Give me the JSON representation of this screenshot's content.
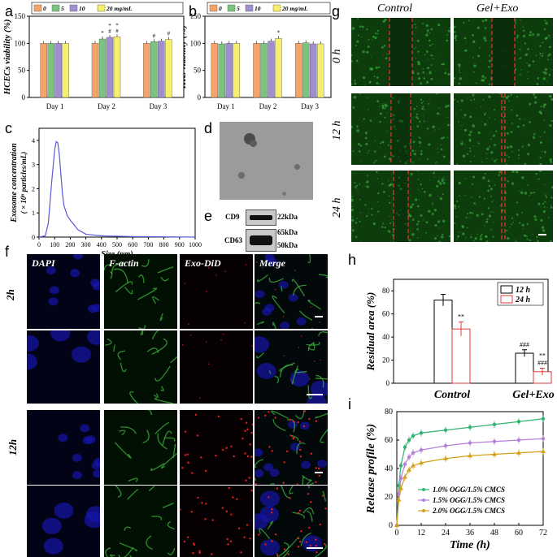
{
  "panels": {
    "a": "a",
    "b": "b",
    "c": "c",
    "d": "d",
    "e": "e",
    "f": "f",
    "g": "g",
    "h": "h",
    "i": "i"
  },
  "a": {
    "ylabel": "HCECs viability (%)",
    "categories": [
      "Day 1",
      "Day 2",
      "Day 3"
    ],
    "legend": [
      "0",
      "5",
      "10",
      "20 mg/mL"
    ],
    "colors": [
      "#f4a46a",
      "#7bc47f",
      "#9f8fcf",
      "#f5ef6b"
    ],
    "values": [
      [
        100,
        100,
        100,
        100
      ],
      [
        100,
        108,
        111,
        112
      ],
      [
        100,
        103,
        104,
        107
      ]
    ],
    "sig": [
      [
        "",
        "",
        "",
        ""
      ],
      [
        "",
        "*",
        "# *",
        "# *"
      ],
      [
        "",
        "#",
        "",
        "#"
      ]
    ],
    "ylim": [
      0,
      150
    ],
    "yticks": [
      "0",
      "50",
      "100",
      "150"
    ]
  },
  "b": {
    "ylabel": "HKs viability (%)",
    "categories": [
      "Day 1",
      "Day 2",
      "Day 3"
    ],
    "legend": [
      "0",
      "5",
      "10",
      "20 mg/mL"
    ],
    "values": [
      [
        100,
        99,
        100,
        100
      ],
      [
        100,
        100,
        104,
        109
      ],
      [
        100,
        101,
        99,
        99
      ]
    ],
    "sig": [
      [
        "",
        "",
        "",
        ""
      ],
      [
        "",
        "",
        "",
        "*"
      ],
      [
        "",
        "",
        "",
        ""
      ]
    ],
    "ylim": [
      0,
      150
    ],
    "yticks": [
      "0",
      "50",
      "100",
      "150"
    ]
  },
  "c": {
    "ylabel1": "Exosome concentration",
    "ylabel2": "( × 10⁶ particles/mL)",
    "xlabel": "Size (nm)",
    "xticks": [
      "0",
      "100",
      "200",
      "300",
      "400",
      "500",
      "600",
      "700",
      "800",
      "900",
      "1000"
    ],
    "yticks": [
      "0",
      "1",
      "2",
      "3",
      "4"
    ]
  },
  "e": {
    "cd9": "CD9",
    "cd63": "CD63",
    "kda22": "22kDa",
    "kda65": "65kDa",
    "kda50": "50kDa"
  },
  "f": {
    "cols": [
      "DAPI",
      "F-actin",
      "Exo-DiD",
      "Merge"
    ],
    "rows": [
      "2h",
      "12h"
    ]
  },
  "g": {
    "cols": [
      "Control",
      "Gel+Exo"
    ],
    "rows": [
      "0 h",
      "12 h",
      "24 h"
    ]
  },
  "h": {
    "ylabel": "Residual area (%)",
    "categories": [
      "Control",
      "Gel+Exo"
    ],
    "legend": [
      "12 h",
      "24 h"
    ],
    "values": [
      [
        72,
        47
      ],
      [
        26,
        10
      ]
    ],
    "errors": [
      [
        5,
        6
      ],
      [
        3,
        3
      ]
    ],
    "sig": [
      [
        "",
        "**"
      ],
      [
        "###",
        "### **"
      ]
    ],
    "yticks": [
      "0",
      "20",
      "40",
      "60",
      "80"
    ]
  },
  "i": {
    "ylabel": "Release profile (%)",
    "xlabel": "Time (h)",
    "xticks": [
      "0",
      "12",
      "24",
      "36",
      "48",
      "60",
      "72"
    ],
    "yticks": [
      "0",
      "20",
      "40",
      "60",
      "80"
    ],
    "legend": [
      "1.0% OGG/1.5% CMCS",
      "1.5% OGG/1.5% CMCS",
      "2.0% OGG/1.5% CMCS"
    ]
  },
  "chart_data": [
    {
      "type": "bar",
      "panel": "a",
      "categories": [
        "Day 1",
        "Day 2",
        "Day 3"
      ],
      "series": [
        {
          "name": "0",
          "values": [
            100,
            100,
            100
          ]
        },
        {
          "name": "5",
          "values": [
            100,
            108,
            103
          ]
        },
        {
          "name": "10",
          "values": [
            100,
            111,
            104
          ]
        },
        {
          "name": "20 mg/mL",
          "values": [
            100,
            112,
            107
          ]
        }
      ],
      "ylabel": "HCECs viability (%)",
      "ylim": [
        0,
        150
      ]
    },
    {
      "type": "bar",
      "panel": "b",
      "categories": [
        "Day 1",
        "Day 2",
        "Day 3"
      ],
      "series": [
        {
          "name": "0",
          "values": [
            100,
            100,
            100
          ]
        },
        {
          "name": "5",
          "values": [
            99,
            100,
            101
          ]
        },
        {
          "name": "10",
          "values": [
            100,
            104,
            99
          ]
        },
        {
          "name": "20 mg/mL",
          "values": [
            100,
            109,
            99
          ]
        }
      ],
      "ylabel": "HKs viability (%)",
      "ylim": [
        0,
        150
      ]
    },
    {
      "type": "line",
      "panel": "c",
      "x": [
        0,
        40,
        60,
        80,
        100,
        110,
        120,
        130,
        140,
        150,
        160,
        180,
        200,
        250,
        300,
        400,
        600,
        800,
        1000
      ],
      "values": [
        0,
        0.05,
        0.6,
        2.2,
        3.6,
        3.95,
        3.9,
        3.4,
        2.6,
        1.8,
        1.3,
        0.9,
        0.7,
        0.3,
        0.12,
        0.05,
        0.02,
        0.01,
        0
      ],
      "xlabel": "Size (nm)",
      "ylim": [
        0,
        4.5
      ]
    },
    {
      "type": "bar",
      "panel": "h",
      "categories": [
        "Control",
        "Gel+Exo"
      ],
      "series": [
        {
          "name": "12 h",
          "values": [
            72,
            26
          ]
        },
        {
          "name": "24 h",
          "values": [
            47,
            10
          ]
        }
      ],
      "ylabel": "Residual area (%)",
      "ylim": [
        0,
        90
      ]
    },
    {
      "type": "line",
      "panel": "i",
      "x": [
        0,
        1,
        2,
        4,
        6,
        8,
        12,
        24,
        36,
        48,
        60,
        72
      ],
      "series": [
        {
          "name": "1.0% OGG/1.5% CMCS",
          "color": "#2fb36f",
          "values": [
            0,
            28,
            42,
            55,
            60,
            63,
            65,
            67,
            69,
            71,
            73,
            75
          ]
        },
        {
          "name": "1.5% OGG/1.5% CMCS",
          "color": "#b77fd9",
          "values": [
            0,
            22,
            33,
            43,
            48,
            51,
            53,
            56,
            58,
            59,
            60,
            61
          ]
        },
        {
          "name": "2.0% OGG/1.5% CMCS",
          "color": "#d4a017",
          "values": [
            0,
            18,
            26,
            34,
            39,
            42,
            44,
            47,
            49,
            50,
            51,
            52
          ]
        }
      ],
      "xlabel": "Time (h)",
      "ylabel": "Release profile (%)",
      "ylim": [
        0,
        80
      ],
      "xlim": [
        0,
        72
      ]
    }
  ]
}
